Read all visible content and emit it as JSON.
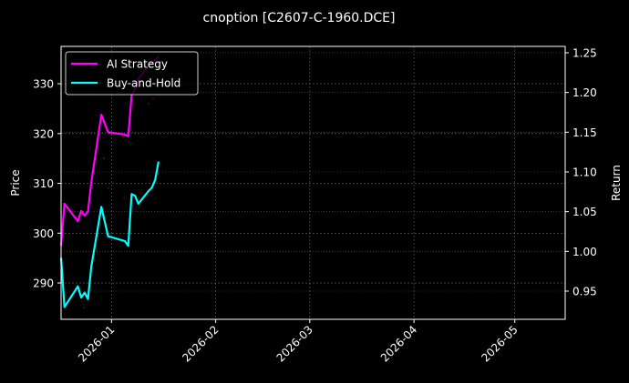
{
  "chart_data": {
    "type": "line",
    "title": "cnoption [C2607-C-1960.DCE]",
    "xlabel": "",
    "ylabel": "Price",
    "ylabel_right": "Return",
    "x_ticks": [
      "2026-01",
      "2026-02",
      "2026-03",
      "2026-04",
      "2026-05"
    ],
    "y_ticks_left": [
      290,
      300,
      310,
      320,
      330
    ],
    "y_ticks_right": [
      "0.95",
      "1.00",
      "1.05",
      "1.10",
      "1.15",
      "1.20",
      "1.25"
    ],
    "ylim_left": [
      282.7,
      337.5
    ],
    "ylim_right": [
      0.9145,
      1.258
    ],
    "xlim": [
      "2025-12-17",
      "2026-05-16"
    ],
    "grid": true,
    "legend_position": "upper left",
    "background": "#000000",
    "x": [
      "2025-12-17",
      "2025-12-18",
      "2025-12-22",
      "2025-12-23",
      "2025-12-24",
      "2025-12-25",
      "2025-12-26",
      "2025-12-29",
      "2025-12-31",
      "2026-01-05",
      "2026-01-06",
      "2026-01-07",
      "2026-01-08",
      "2026-01-09",
      "2026-01-12",
      "2026-01-13",
      "2026-01-14",
      "2026-01-15"
    ],
    "series": [
      {
        "name": "AI Strategy",
        "axis": "right",
        "color": "#ff00ff",
        "values": [
          1.007,
          1.06,
          1.038,
          1.051,
          1.045,
          1.05,
          1.087,
          1.172,
          1.15,
          1.147,
          1.145,
          1.196,
          1.205,
          1.217,
          1.234,
          1.238,
          1.241,
          1.245
        ]
      },
      {
        "name": "Buy-and-Hold",
        "axis": "right",
        "color": "#00ffff",
        "values": [
          0.992,
          0.93,
          0.956,
          0.942,
          0.948,
          0.94,
          0.981,
          1.056,
          1.019,
          1.013,
          1.007,
          1.072,
          1.07,
          1.06,
          1.076,
          1.08,
          1.09,
          1.113
        ]
      }
    ],
    "price_markers": {
      "color": "#8b0000",
      "note": "faint scatter points on left Price axis",
      "points": [
        [
          92,
          285
        ],
        [
          114,
          315
        ],
        [
          119,
          309
        ],
        [
          136,
          307
        ],
        [
          144,
          318
        ],
        [
          152,
          306
        ],
        [
          163,
          326
        ],
        [
          168,
          327
        ],
        [
          172,
          330
        ]
      ]
    }
  },
  "legend": {
    "items": [
      {
        "label": "AI Strategy",
        "color": "#ff00ff"
      },
      {
        "label": "Buy-and-Hold",
        "color": "#00ffff"
      }
    ]
  }
}
